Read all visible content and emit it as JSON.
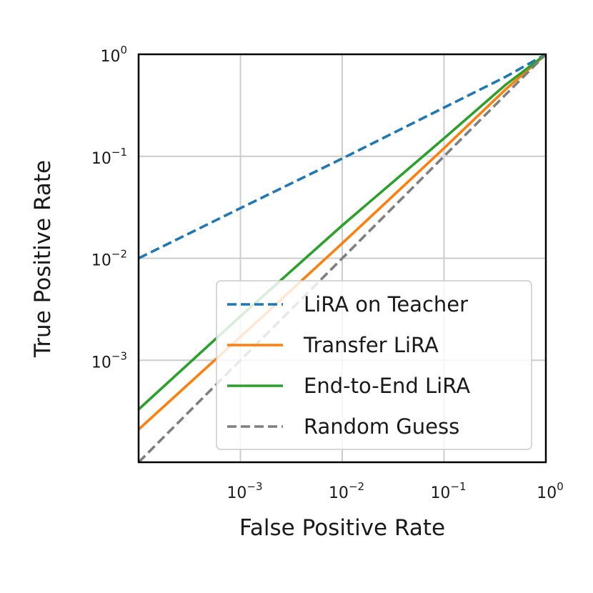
{
  "chart_data": {
    "type": "line",
    "xlabel": "False Positive Rate",
    "ylabel": "True Positive Rate",
    "x_scale": "log",
    "y_scale": "log",
    "xlim": [
      0.0001,
      1
    ],
    "ylim": [
      0.0001,
      1
    ],
    "grid": true,
    "legend_position": "lower-right",
    "x_ticks": [
      {
        "value": 0.001,
        "base": "10",
        "exp": "−3"
      },
      {
        "value": 0.01,
        "base": "10",
        "exp": "−2"
      },
      {
        "value": 0.1,
        "base": "10",
        "exp": "−1"
      },
      {
        "value": 1,
        "base": "10",
        "exp": "0"
      }
    ],
    "y_ticks": [
      {
        "value": 0.001,
        "base": "10",
        "exp": "−3"
      },
      {
        "value": 0.01,
        "base": "10",
        "exp": "−2"
      },
      {
        "value": 0.1,
        "base": "10",
        "exp": "−1"
      },
      {
        "value": 1,
        "base": "10",
        "exp": "0"
      }
    ],
    "series": [
      {
        "name": "LiRA on Teacher",
        "color": "#1f77b4",
        "dash": "dashed",
        "x": [
          0.0001,
          0.001,
          0.01,
          0.1,
          0.4,
          1
        ],
        "y": [
          0.01,
          0.031,
          0.095,
          0.3,
          0.6,
          1
        ]
      },
      {
        "name": "Transfer LiRA",
        "color": "#ff7f0e",
        "dash": "solid",
        "x": [
          0.0001,
          0.001,
          0.01,
          0.1,
          0.4,
          1
        ],
        "y": [
          0.00021,
          0.0017,
          0.014,
          0.12,
          0.45,
          1
        ]
      },
      {
        "name": "End-to-End LiRA",
        "color": "#2ca02c",
        "dash": "solid",
        "x": [
          0.0001,
          0.001,
          0.01,
          0.1,
          0.4,
          1
        ],
        "y": [
          0.00033,
          0.0027,
          0.021,
          0.15,
          0.5,
          1
        ]
      },
      {
        "name": "Random Guess",
        "color": "#7f7f7f",
        "dash": "dashed",
        "x": [
          0.0001,
          1
        ],
        "y": [
          0.0001,
          1
        ]
      }
    ]
  }
}
